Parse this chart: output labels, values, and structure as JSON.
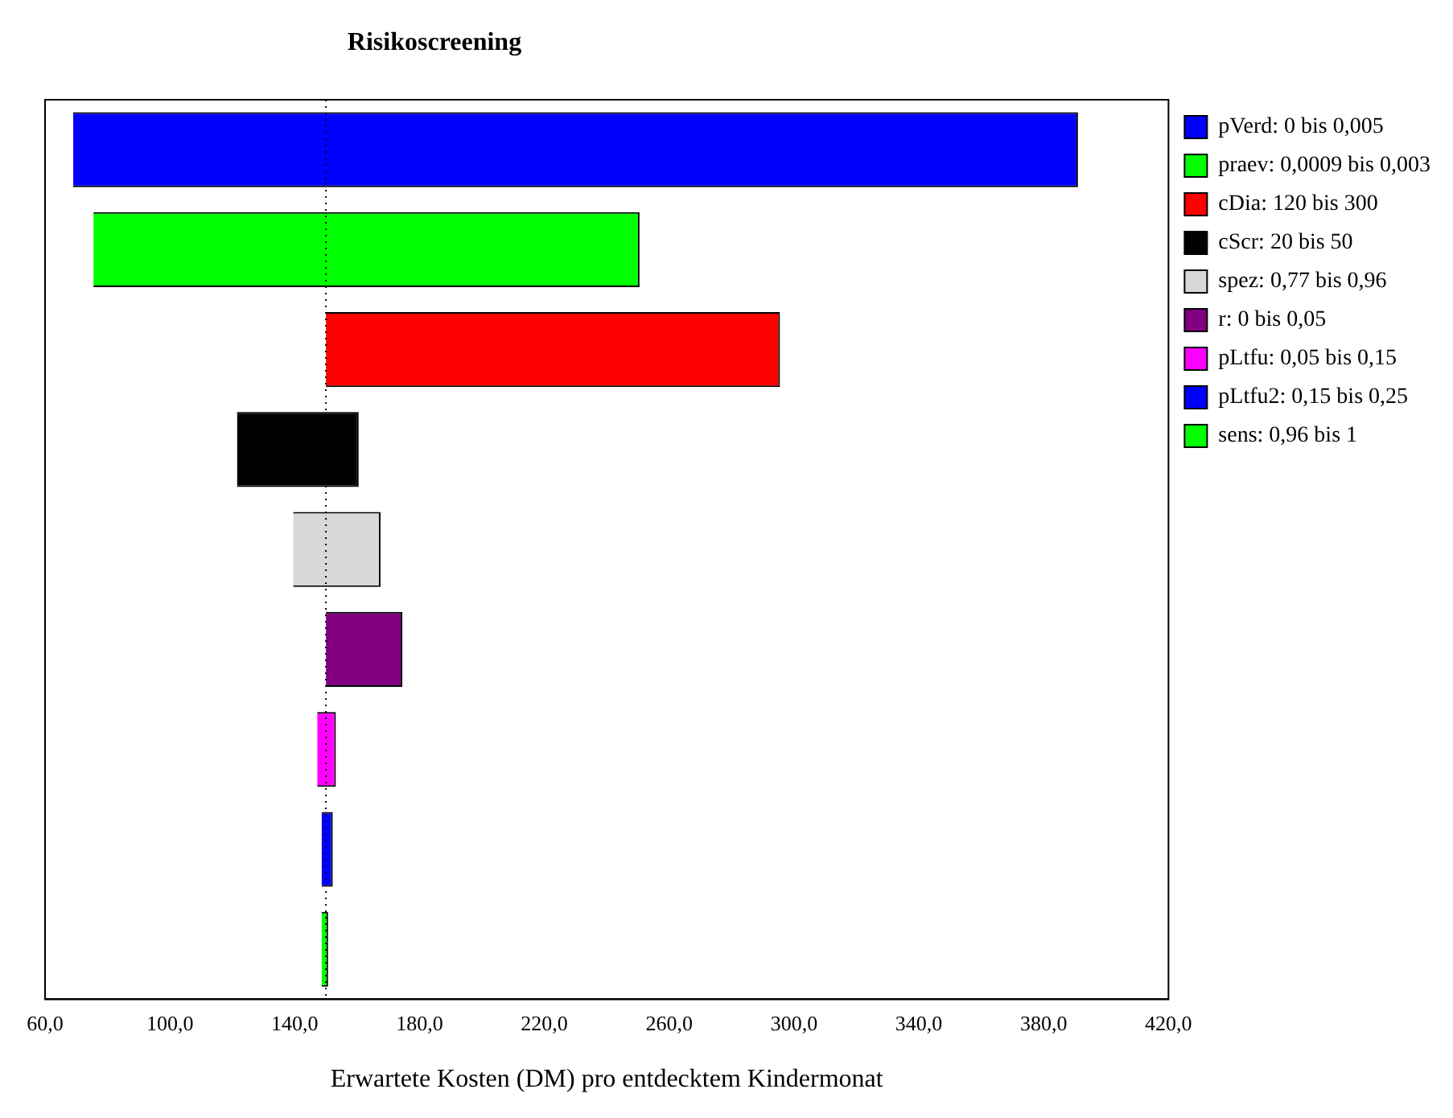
{
  "chart_data": {
    "type": "bar",
    "orientation": "horizontal",
    "title": "Risikoscreening",
    "xlabel": "Erwartete Kosten (DM) pro entdecktem Kindermonat",
    "categories": [
      null,
      null,
      null,
      null,
      null,
      null,
      null,
      null,
      null
    ],
    "series": [
      {
        "name": "pVerd: 0 bis 0,005",
        "color": "#0000ff",
        "base": [
          69,
          null,
          null,
          null,
          null,
          null,
          null,
          null,
          null
        ],
        "values": [
          322,
          null,
          null,
          null,
          null,
          null,
          null,
          null,
          null
        ]
      },
      {
        "name": "praev: 0,0009 bis 0,003",
        "color": "#00ff00",
        "base": [
          null,
          75.5,
          null,
          null,
          null,
          null,
          null,
          null,
          null
        ],
        "values": [
          null,
          175,
          null,
          null,
          null,
          null,
          null,
          null,
          null
        ]
      },
      {
        "name": "cDia: 120 bis 300",
        "color": "#ff0000",
        "base": [
          null,
          null,
          150,
          null,
          null,
          null,
          null,
          null,
          null
        ],
        "values": [
          null,
          null,
          145.5,
          null,
          null,
          null,
          null,
          null,
          null
        ]
      },
      {
        "name": "cScr: 20 bis 50",
        "color": "#000000",
        "base": [
          null,
          null,
          null,
          121.5,
          null,
          null,
          null,
          null,
          null
        ],
        "values": [
          null,
          null,
          null,
          39,
          null,
          null,
          null,
          null,
          null
        ]
      },
      {
        "name": "spez: 0,77 bis 0,96",
        "color": "#d8d8d8",
        "base": [
          null,
          null,
          null,
          null,
          139.5,
          null,
          null,
          null,
          null
        ],
        "values": [
          null,
          null,
          null,
          null,
          28,
          null,
          null,
          null,
          null
        ]
      },
      {
        "name": "r: 0 bis 0,05",
        "color": "#800080",
        "base": [
          null,
          null,
          null,
          null,
          null,
          150,
          null,
          null,
          null
        ],
        "values": [
          null,
          null,
          null,
          null,
          null,
          24.5,
          null,
          null,
          null
        ]
      },
      {
        "name": "pLtfu: 0,05 bis 0,15",
        "color": "#ff00ff",
        "base": [
          null,
          null,
          null,
          null,
          null,
          null,
          147.2,
          null,
          null
        ],
        "values": [
          null,
          null,
          null,
          null,
          null,
          null,
          6,
          null,
          null
        ]
      },
      {
        "name": "pLtfu2: 0,15 bis 0,25",
        "color": "#0000ff",
        "base": [
          null,
          null,
          null,
          null,
          null,
          null,
          null,
          148.6,
          null
        ],
        "values": [
          null,
          null,
          null,
          null,
          null,
          null,
          null,
          3.6,
          null
        ]
      },
      {
        "name": "sens: 0,96 bis 1",
        "color": "#00ff00",
        "base": [
          null,
          null,
          null,
          null,
          null,
          null,
          null,
          null,
          148.6
        ],
        "values": [
          null,
          null,
          null,
          null,
          null,
          null,
          null,
          null,
          2.1
        ]
      }
    ],
    "xlim": [
      60,
      420
    ],
    "xticks": [
      {
        "value": 60,
        "label": "60,0"
      },
      {
        "value": 100,
        "label": "100,0"
      },
      {
        "value": 140,
        "label": "140,0"
      },
      {
        "value": 180,
        "label": "180,0"
      },
      {
        "value": 220,
        "label": "220,0"
      },
      {
        "value": 260,
        "label": "260,0"
      },
      {
        "value": 300,
        "label": "300,0"
      },
      {
        "value": 340,
        "label": "340,0"
      },
      {
        "value": 380,
        "label": "380,0"
      },
      {
        "value": 420,
        "label": "420,0"
      }
    ],
    "ref_lines": [
      {
        "axis": "x",
        "value": 150,
        "line_style": "dotted",
        "color": "#000000"
      }
    ],
    "grid": false,
    "legend": "right"
  }
}
